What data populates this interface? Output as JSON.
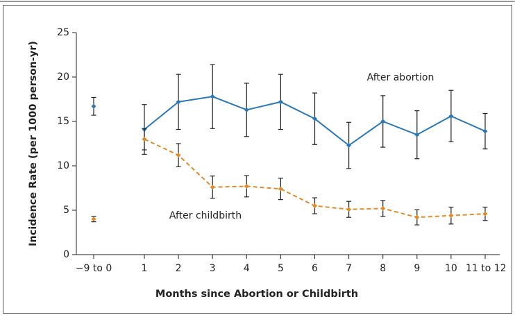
{
  "chart_data": {
    "type": "line",
    "xlabel": "Months since Abortion or Childbirth",
    "ylabel": "Incidence Rate (per 1000 person-yr)",
    "categories": [
      "−9 to 0",
      "1",
      "2",
      "3",
      "4",
      "5",
      "6",
      "7",
      "8",
      "9",
      "10",
      "11 to 12"
    ],
    "series": [
      {
        "name": "After abortion",
        "color": "#2b78b4",
        "dashed": false,
        "values": [
          16.7,
          14.1,
          17.2,
          17.8,
          16.3,
          17.2,
          15.3,
          12.3,
          15.0,
          13.5,
          15.6,
          13.9
        ],
        "errors": [
          1.0,
          2.8,
          3.1,
          3.6,
          3.0,
          3.1,
          2.9,
          2.6,
          2.9,
          2.7,
          2.9,
          2.0
        ]
      },
      {
        "name": "After childbirth",
        "color": "#e08a2a",
        "dashed": true,
        "values": [
          4.0,
          13.0,
          11.2,
          7.6,
          7.7,
          7.4,
          5.5,
          5.1,
          5.2,
          4.2,
          4.4,
          4.6
        ],
        "errors": [
          0.3,
          1.2,
          1.3,
          1.25,
          1.2,
          1.2,
          0.9,
          0.9,
          0.9,
          0.85,
          0.95,
          0.75
        ]
      }
    ],
    "ylim": [
      0,
      25
    ],
    "yticks": [
      0,
      5,
      10,
      15,
      20,
      25
    ]
  }
}
